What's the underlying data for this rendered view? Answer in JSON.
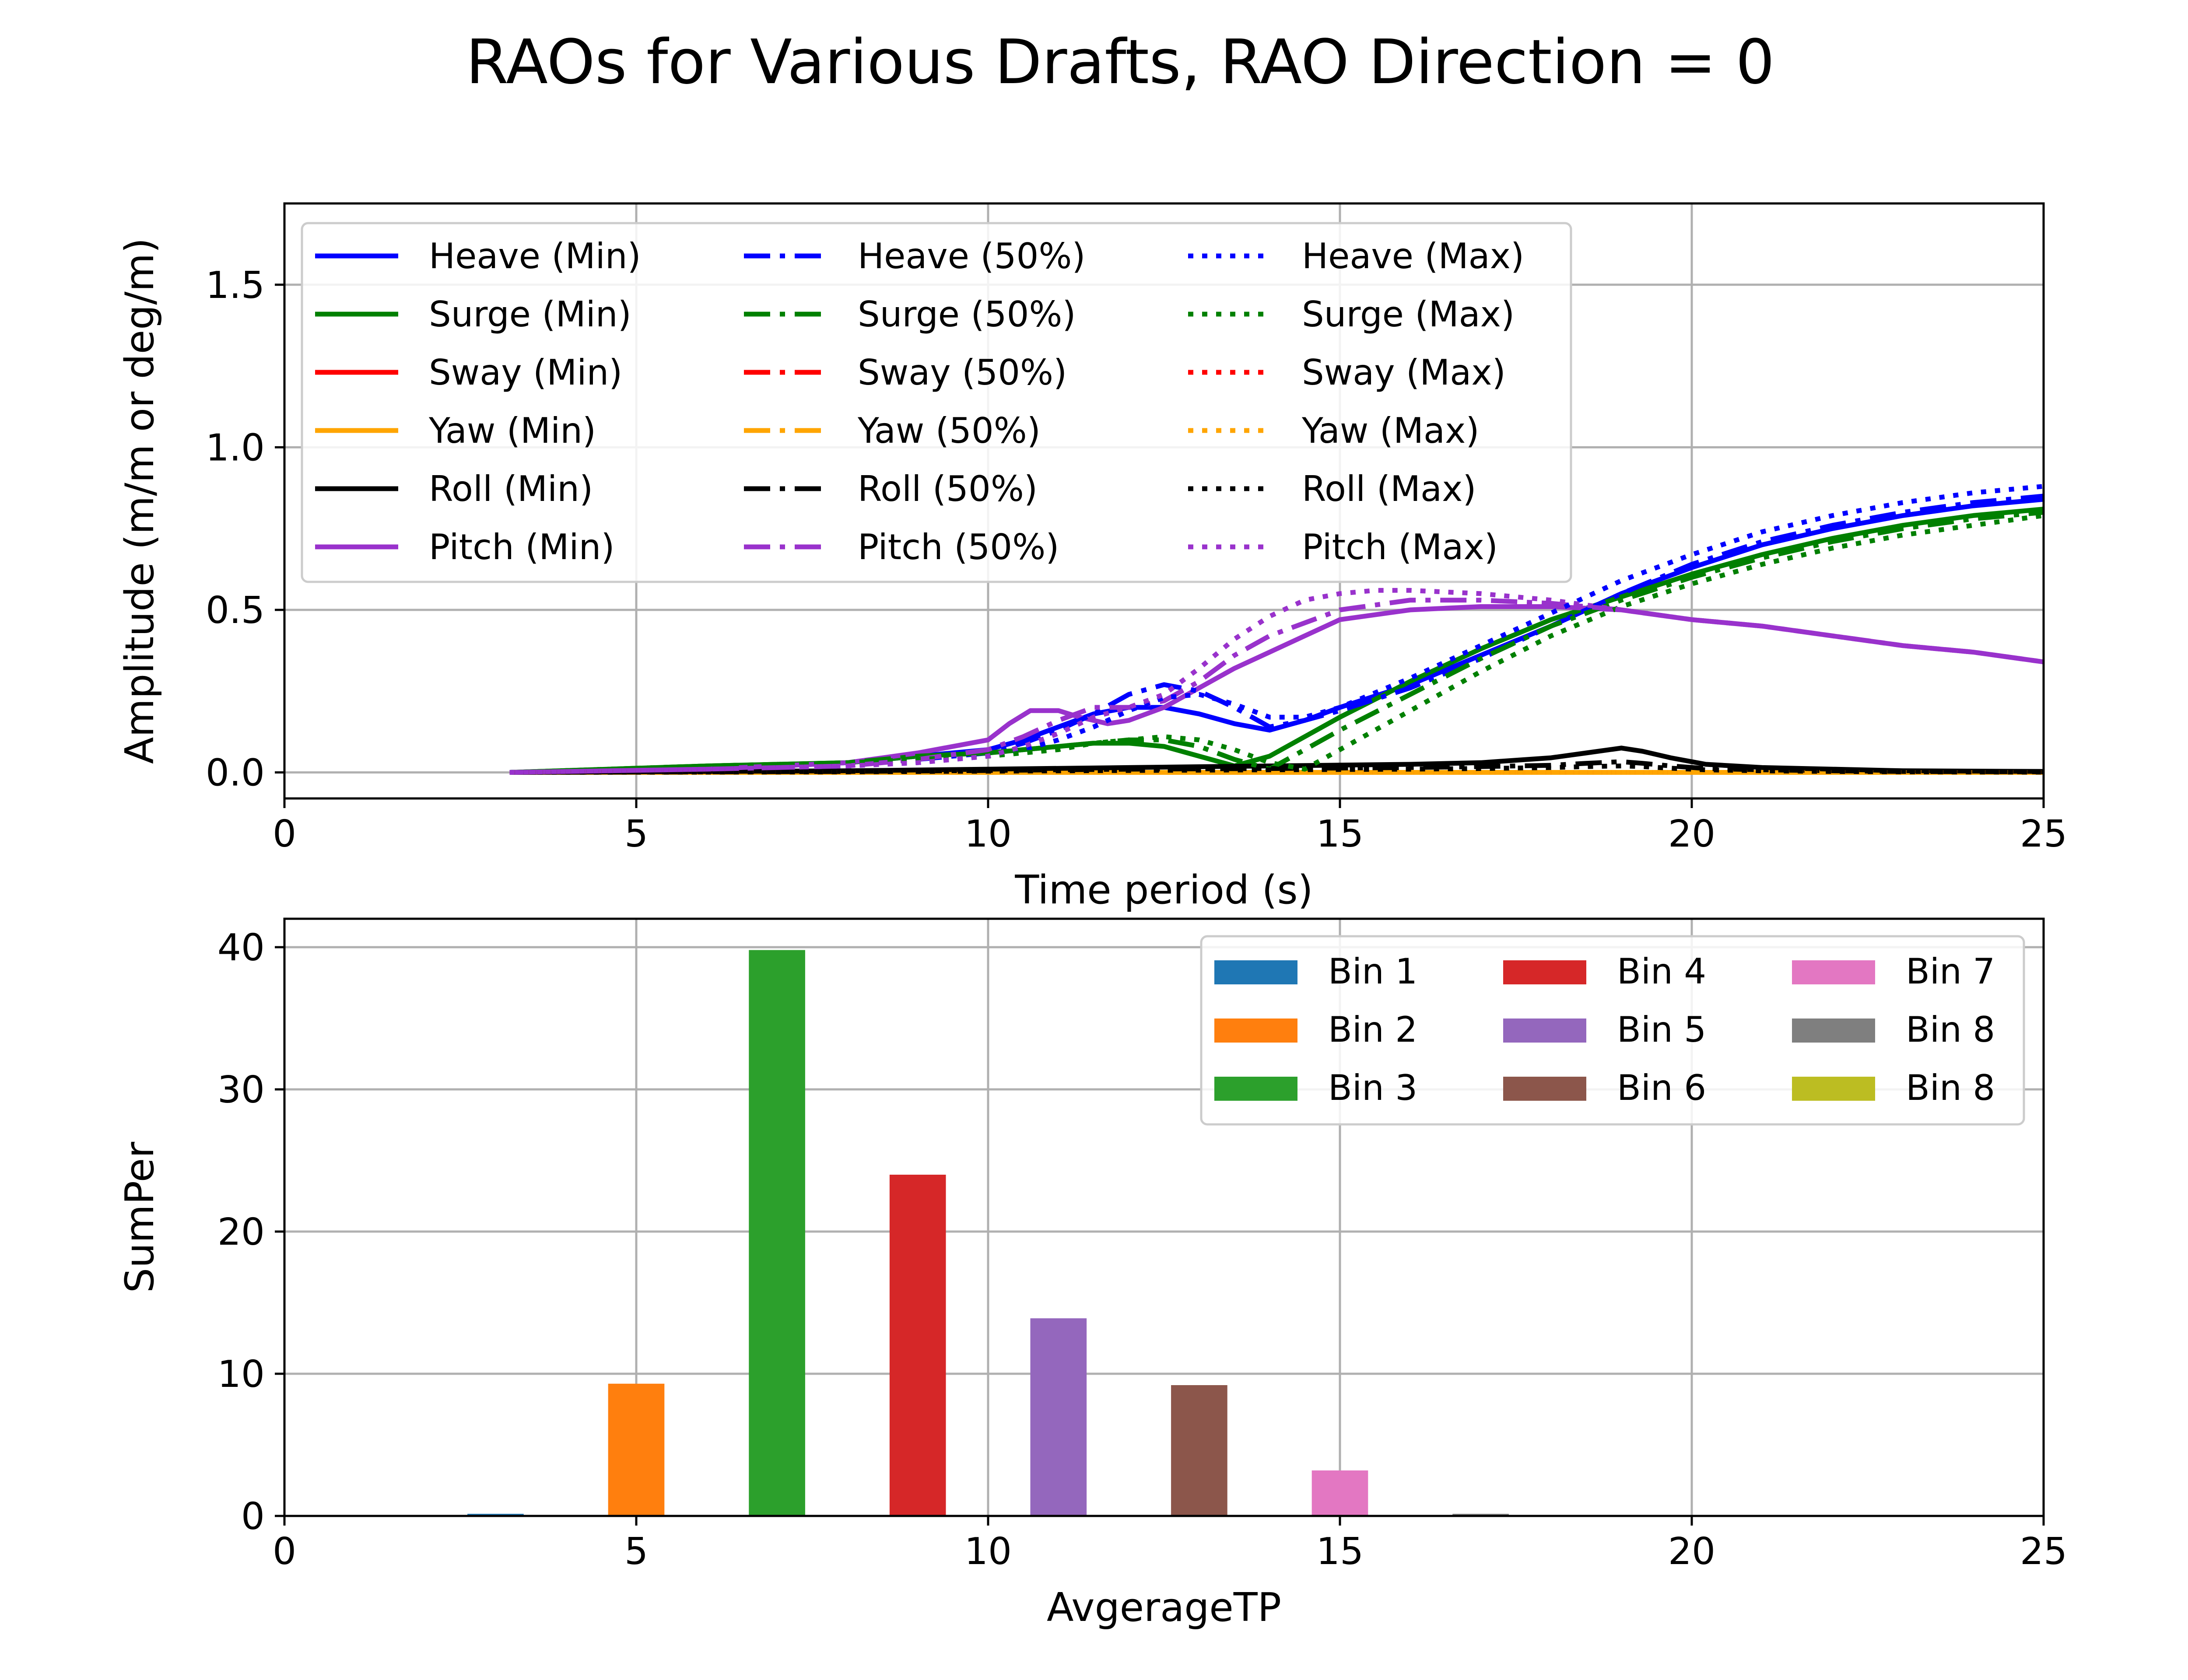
{
  "figure": {
    "title": "RAOs for Various Drafts, RAO Direction = 0"
  },
  "chart_data": [
    {
      "type": "line",
      "xlabel": "Time period (s)",
      "ylabel": "Amplitude (m/m or deg/m)",
      "xlim": [
        0,
        25
      ],
      "ylim": [
        -0.08,
        1.75
      ],
      "xticks": [
        "0",
        "5",
        "10",
        "15",
        "20",
        "25"
      ],
      "yticks": [
        "0.0",
        "0.5",
        "1.0",
        "1.5"
      ],
      "yticks_values": [
        0,
        0.5,
        1.0,
        1.5
      ],
      "grid": true,
      "legend": {
        "position": "top-left",
        "columns": 3
      },
      "series": [
        {
          "name": "Heave (Min)",
          "color": "#0000ff",
          "dash": "solid",
          "x": [
            3.2,
            6,
            8,
            9,
            10,
            10.5,
            11,
            11.5,
            12,
            12.5,
            13,
            13.5,
            14,
            14.5,
            15,
            16,
            17,
            18,
            19,
            20,
            21,
            22,
            23,
            24,
            25
          ],
          "y": [
            0,
            0.01,
            0.03,
            0.05,
            0.07,
            0.1,
            0.14,
            0.18,
            0.2,
            0.2,
            0.18,
            0.15,
            0.13,
            0.16,
            0.2,
            0.27,
            0.36,
            0.45,
            0.55,
            0.63,
            0.7,
            0.75,
            0.79,
            0.82,
            0.84
          ]
        },
        {
          "name": "Surge (Min)",
          "color": "#008000",
          "dash": "solid",
          "x": [
            3.2,
            6,
            8,
            9,
            10,
            11,
            11.5,
            12,
            12.5,
            13,
            13.5,
            14,
            14.5,
            15,
            16,
            17,
            18,
            19,
            20,
            21,
            22,
            23,
            24,
            25
          ],
          "y": [
            0,
            0.02,
            0.03,
            0.05,
            0.06,
            0.08,
            0.09,
            0.09,
            0.08,
            0.05,
            0.02,
            0.05,
            0.11,
            0.17,
            0.28,
            0.38,
            0.47,
            0.54,
            0.61,
            0.67,
            0.72,
            0.76,
            0.79,
            0.81
          ]
        },
        {
          "name": "Sway (Min)",
          "color": "#ff0000",
          "dash": "solid",
          "x": [
            3.2,
            25
          ],
          "y": [
            0,
            0
          ]
        },
        {
          "name": "Yaw (Min)",
          "color": "#ffa500",
          "dash": "solid",
          "x": [
            3.2,
            25
          ],
          "y": [
            0,
            0
          ]
        },
        {
          "name": "Roll (Min)",
          "color": "#000000",
          "dash": "solid",
          "x": [
            3.2,
            8,
            10,
            12,
            14,
            16,
            17,
            18,
            18.5,
            19,
            19.3,
            19.7,
            20.2,
            21,
            22,
            23,
            25
          ],
          "y": [
            0,
            0.005,
            0.01,
            0.015,
            0.02,
            0.025,
            0.03,
            0.045,
            0.06,
            0.075,
            0.065,
            0.045,
            0.025,
            0.015,
            0.01,
            0.005,
            0.003
          ]
        },
        {
          "name": "Pitch (Min)",
          "color": "#9932cc",
          "dash": "solid",
          "x": [
            3.2,
            6,
            8,
            9,
            10,
            10.3,
            10.6,
            11,
            11.3,
            11.7,
            12,
            12.5,
            13,
            13.5,
            14,
            14.5,
            15,
            16,
            17,
            18,
            19,
            20,
            21,
            22,
            23,
            24,
            25
          ],
          "y": [
            0,
            0.01,
            0.03,
            0.06,
            0.1,
            0.15,
            0.19,
            0.19,
            0.17,
            0.15,
            0.16,
            0.2,
            0.26,
            0.32,
            0.37,
            0.42,
            0.47,
            0.5,
            0.51,
            0.51,
            0.5,
            0.47,
            0.45,
            0.42,
            0.39,
            0.37,
            0.34
          ]
        },
        {
          "name": "Heave (50%)",
          "color": "#0000ff",
          "dash": "dashdot",
          "x": [
            3.2,
            6,
            8,
            9,
            10,
            10.5,
            11,
            11.5,
            12,
            12.5,
            13,
            13.5,
            14,
            14.5,
            15,
            16,
            17,
            18,
            19,
            20,
            21,
            22,
            23,
            24,
            25
          ],
          "y": [
            0,
            0.01,
            0.03,
            0.04,
            0.06,
            0.09,
            0.13,
            0.18,
            0.24,
            0.27,
            0.25,
            0.2,
            0.14,
            0.16,
            0.19,
            0.26,
            0.35,
            0.45,
            0.55,
            0.64,
            0.71,
            0.76,
            0.8,
            0.83,
            0.85
          ]
        },
        {
          "name": "Surge (50%)",
          "color": "#008000",
          "dash": "dashdot",
          "x": [
            3.2,
            6,
            8,
            9,
            10,
            11,
            11.5,
            12,
            12.5,
            13,
            13.5,
            14,
            14.5,
            15,
            16,
            17,
            18,
            19,
            20,
            21,
            22,
            23,
            24,
            25
          ],
          "y": [
            0,
            0.02,
            0.03,
            0.05,
            0.06,
            0.08,
            0.09,
            0.1,
            0.1,
            0.08,
            0.04,
            0.01,
            0.07,
            0.13,
            0.24,
            0.35,
            0.45,
            0.53,
            0.6,
            0.66,
            0.71,
            0.75,
            0.78,
            0.8
          ]
        },
        {
          "name": "Sway (50%)",
          "color": "#ff0000",
          "dash": "dashdot",
          "x": [
            3.2,
            25
          ],
          "y": [
            0,
            0
          ]
        },
        {
          "name": "Yaw (50%)",
          "color": "#ffa500",
          "dash": "dashdot",
          "x": [
            3.2,
            25
          ],
          "y": [
            0,
            0
          ]
        },
        {
          "name": "Roll (50%)",
          "color": "#000000",
          "dash": "dashdot",
          "x": [
            3.2,
            8,
            10,
            12,
            14,
            16,
            17,
            18,
            18.5,
            19,
            19.3,
            19.7,
            20.2,
            21,
            22,
            23,
            25
          ],
          "y": [
            0,
            0.003,
            0.006,
            0.01,
            0.012,
            0.015,
            0.018,
            0.022,
            0.028,
            0.033,
            0.028,
            0.02,
            0.012,
            0.008,
            0.005,
            0.003,
            0.002
          ]
        },
        {
          "name": "Pitch (50%)",
          "color": "#9932cc",
          "dash": "dashdot",
          "x": [
            3.2,
            6,
            8,
            9,
            10,
            10.5,
            11,
            11.5,
            12,
            12.5,
            13,
            13.5,
            14,
            14.5,
            15,
            16,
            17,
            18,
            19,
            20,
            21,
            22,
            23,
            24,
            25
          ],
          "y": [
            0,
            0.01,
            0.02,
            0.04,
            0.07,
            0.11,
            0.16,
            0.2,
            0.2,
            0.22,
            0.28,
            0.36,
            0.42,
            0.46,
            0.5,
            0.53,
            0.53,
            0.52,
            0.5,
            0.47,
            0.45,
            0.42,
            0.39,
            0.37,
            0.34
          ]
        },
        {
          "name": "Heave (Max)",
          "color": "#0000ff",
          "dash": "dotted",
          "x": [
            3.2,
            6,
            8,
            9,
            10,
            10.5,
            11,
            11.5,
            12,
            12.5,
            13,
            13.5,
            14,
            14.5,
            15,
            16,
            17,
            18,
            19,
            20,
            21,
            22,
            23,
            24,
            25
          ],
          "y": [
            0,
            0.01,
            0.02,
            0.03,
            0.05,
            0.07,
            0.1,
            0.14,
            0.19,
            0.23,
            0.24,
            0.21,
            0.17,
            0.17,
            0.2,
            0.29,
            0.39,
            0.49,
            0.59,
            0.67,
            0.74,
            0.79,
            0.83,
            0.86,
            0.88
          ]
        },
        {
          "name": "Surge (Max)",
          "color": "#008000",
          "dash": "dotted",
          "x": [
            3.2,
            6,
            8,
            9,
            10,
            11,
            11.5,
            12,
            12.5,
            13,
            13.5,
            14,
            14.5,
            15,
            16,
            17,
            18,
            19,
            20,
            21,
            22,
            23,
            24,
            25
          ],
          "y": [
            0,
            0.02,
            0.03,
            0.04,
            0.05,
            0.07,
            0.09,
            0.1,
            0.11,
            0.1,
            0.07,
            0.03,
            0.01,
            0.07,
            0.19,
            0.31,
            0.42,
            0.51,
            0.58,
            0.64,
            0.69,
            0.73,
            0.76,
            0.79
          ]
        },
        {
          "name": "Sway (Max)",
          "color": "#ff0000",
          "dash": "dotted",
          "x": [
            3.2,
            25
          ],
          "y": [
            0,
            0
          ]
        },
        {
          "name": "Yaw (Max)",
          "color": "#ffa500",
          "dash": "dotted",
          "x": [
            3.2,
            25
          ],
          "y": [
            0,
            0
          ]
        },
        {
          "name": "Roll (Max)",
          "color": "#000000",
          "dash": "dotted",
          "x": [
            3.2,
            8,
            10,
            12,
            14,
            16,
            17,
            18,
            18.5,
            19,
            19.3,
            19.7,
            20.2,
            21,
            22,
            23,
            25
          ],
          "y": [
            0,
            0.002,
            0.004,
            0.006,
            0.008,
            0.01,
            0.012,
            0.015,
            0.018,
            0.02,
            0.018,
            0.013,
            0.008,
            0.005,
            0.003,
            0.002,
            0.001
          ]
        },
        {
          "name": "Pitch (Max)",
          "color": "#9932cc",
          "dash": "dotted",
          "x": [
            3.2,
            6,
            8,
            9,
            10,
            10.5,
            11,
            11.5,
            12,
            12.5,
            13,
            13.5,
            14,
            14.5,
            15,
            15.5,
            16,
            17,
            18,
            19,
            20,
            21,
            22,
            23,
            24,
            25
          ],
          "y": [
            0,
            0.01,
            0.02,
            0.03,
            0.05,
            0.08,
            0.12,
            0.17,
            0.2,
            0.24,
            0.32,
            0.41,
            0.48,
            0.53,
            0.55,
            0.56,
            0.56,
            0.55,
            0.53,
            0.5,
            0.47,
            0.45,
            0.42,
            0.39,
            0.37,
            0.34
          ]
        }
      ]
    },
    {
      "type": "bar",
      "xlabel": "AvgerageTP",
      "ylabel": "SumPer",
      "xlim": [
        0,
        25
      ],
      "ylim": [
        0,
        42
      ],
      "xticks": [
        "0",
        "5",
        "10",
        "15",
        "20",
        "25"
      ],
      "yticks": [
        "0",
        "10",
        "20",
        "30",
        "40"
      ],
      "yticks_values": [
        0,
        10,
        20,
        30,
        40
      ],
      "grid": true,
      "bar_width": 0.8,
      "legend": {
        "position": "top-right",
        "columns": 3
      },
      "series": [
        {
          "name": "Bin 1",
          "color": "#1f77b4",
          "x": 3,
          "value": 0.15
        },
        {
          "name": "Bin 2",
          "color": "#ff7f0e",
          "x": 5,
          "value": 9.3
        },
        {
          "name": "Bin 3",
          "color": "#2ca02c",
          "x": 7,
          "value": 39.8
        },
        {
          "name": "Bin 4",
          "color": "#d62728",
          "x": 9,
          "value": 24
        },
        {
          "name": "Bin 5",
          "color": "#9467bd",
          "x": 11,
          "value": 13.9
        },
        {
          "name": "Bin 6",
          "color": "#8c564b",
          "x": 13,
          "value": 9.2
        },
        {
          "name": "Bin 7",
          "color": "#e377c2",
          "x": 15,
          "value": 3.2
        },
        {
          "name": "Bin 8",
          "color": "#7f7f7f",
          "x": 17,
          "value": 0.15
        },
        {
          "name": "Bin 8",
          "color": "#bcbd22",
          "x": 19,
          "value": 0
        }
      ]
    }
  ]
}
